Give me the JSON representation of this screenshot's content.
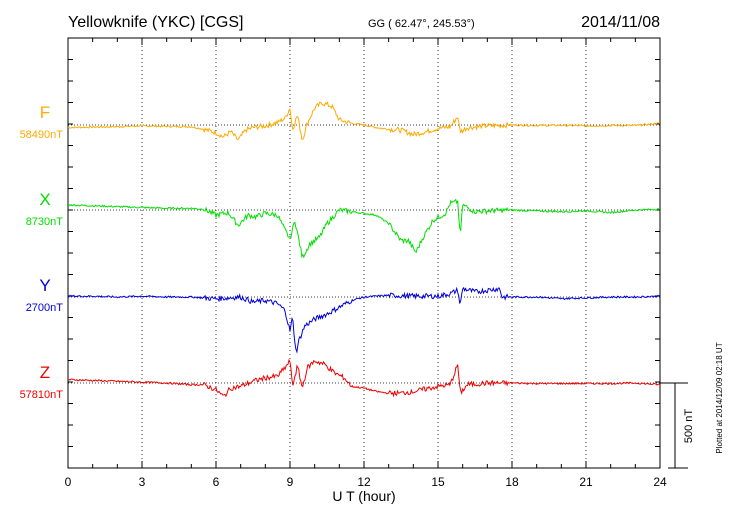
{
  "header": {
    "title": "Yellowknife (YKC)  [CGS]",
    "coords": "GG ( 62.47°, 245.53°)",
    "date": "2014/11/08"
  },
  "footer": {
    "plotted": "Plotted at 2014/12/09 02:18 UT"
  },
  "chart_data": {
    "type": "line",
    "xlabel": "U T (hour)",
    "xlim": [
      0,
      24
    ],
    "xticks": [
      0,
      3,
      6,
      9,
      12,
      15,
      18,
      21,
      24
    ],
    "scale_bar": {
      "label": "500 nT",
      "value_nT": 500
    },
    "grid": true,
    "series": [
      {
        "name": "F",
        "baseline_label": "58490nT",
        "color": "#ffaa00",
        "points": [
          [
            0,
            -15
          ],
          [
            1,
            -12
          ],
          [
            2,
            -10
          ],
          [
            3,
            -5
          ],
          [
            4,
            -8
          ],
          [
            5,
            -10
          ],
          [
            5.5,
            -25
          ],
          [
            6,
            -45
          ],
          [
            6.3,
            -70
          ],
          [
            6.6,
            -40
          ],
          [
            6.9,
            -90
          ],
          [
            7.2,
            -30
          ],
          [
            7.5,
            -15
          ],
          [
            8,
            -5
          ],
          [
            8.5,
            15
          ],
          [
            8.8,
            40
          ],
          [
            9.0,
            100
          ],
          [
            9.1,
            -30
          ],
          [
            9.3,
            60
          ],
          [
            9.5,
            -90
          ],
          [
            9.7,
            10
          ],
          [
            10.0,
            100
          ],
          [
            10.3,
            130
          ],
          [
            10.7,
            110
          ],
          [
            11.0,
            30
          ],
          [
            11.5,
            10
          ],
          [
            12,
            0
          ],
          [
            12.5,
            -15
          ],
          [
            13,
            -25
          ],
          [
            13.5,
            -30
          ],
          [
            14,
            -55
          ],
          [
            14.5,
            -40
          ],
          [
            15,
            -20
          ],
          [
            15.5,
            -10
          ],
          [
            15.8,
            50
          ],
          [
            15.9,
            -40
          ],
          [
            16.2,
            -15
          ],
          [
            17,
            -5
          ],
          [
            18,
            0
          ],
          [
            19,
            -3
          ],
          [
            20,
            -2
          ],
          [
            21,
            -5
          ],
          [
            22,
            -3
          ],
          [
            23,
            -3
          ],
          [
            24,
            10
          ]
        ]
      },
      {
        "name": "X",
        "baseline_label": "8730nT",
        "color": "#00e000",
        "points": [
          [
            0,
            30
          ],
          [
            1,
            25
          ],
          [
            2,
            20
          ],
          [
            3,
            15
          ],
          [
            4,
            10
          ],
          [
            5,
            10
          ],
          [
            5.5,
            5
          ],
          [
            6,
            -30
          ],
          [
            6.5,
            -15
          ],
          [
            6.9,
            -90
          ],
          [
            7.3,
            -30
          ],
          [
            7.6,
            -40
          ],
          [
            8,
            -20
          ],
          [
            8.5,
            -30
          ],
          [
            8.8,
            -120
          ],
          [
            9.0,
            -170
          ],
          [
            9.2,
            -60
          ],
          [
            9.5,
            -280
          ],
          [
            9.8,
            -200
          ],
          [
            10.2,
            -160
          ],
          [
            10.5,
            -80
          ],
          [
            11,
            0
          ],
          [
            11.5,
            -10
          ],
          [
            12,
            -20
          ],
          [
            12.5,
            -30
          ],
          [
            13,
            -80
          ],
          [
            13.5,
            -180
          ],
          [
            13.8,
            -180
          ],
          [
            14.1,
            -250
          ],
          [
            14.4,
            -160
          ],
          [
            14.8,
            -60
          ],
          [
            15.3,
            -20
          ],
          [
            15.5,
            40
          ],
          [
            15.8,
            50
          ],
          [
            15.9,
            -160
          ],
          [
            16,
            30
          ],
          [
            16.5,
            -10
          ],
          [
            17,
            -5
          ],
          [
            18,
            0
          ],
          [
            19,
            -5
          ],
          [
            20,
            -10
          ],
          [
            21,
            -5
          ],
          [
            22,
            -15
          ],
          [
            23,
            0
          ],
          [
            24,
            5
          ]
        ]
      },
      {
        "name": "Y",
        "baseline_label": "2700nT",
        "color": "#0000dd",
        "points": [
          [
            0,
            5
          ],
          [
            1,
            5
          ],
          [
            2,
            0
          ],
          [
            3,
            5
          ],
          [
            4,
            0
          ],
          [
            5,
            0
          ],
          [
            6,
            -10
          ],
          [
            7,
            0
          ],
          [
            7.5,
            -30
          ],
          [
            8,
            -20
          ],
          [
            8.5,
            -40
          ],
          [
            8.8,
            -80
          ],
          [
            9.0,
            -200
          ],
          [
            9.1,
            -120
          ],
          [
            9.25,
            -330
          ],
          [
            9.35,
            -260
          ],
          [
            9.6,
            -170
          ],
          [
            10,
            -130
          ],
          [
            10.5,
            -100
          ],
          [
            11,
            -60
          ],
          [
            11.5,
            -20
          ],
          [
            12,
            0
          ],
          [
            13,
            10
          ],
          [
            14,
            5
          ],
          [
            15,
            5
          ],
          [
            15.5,
            20
          ],
          [
            15.8,
            40
          ],
          [
            15.9,
            -50
          ],
          [
            16,
            50
          ],
          [
            16.5,
            30
          ],
          [
            17,
            40
          ],
          [
            17.5,
            50
          ],
          [
            17.6,
            0
          ],
          [
            18,
            0
          ],
          [
            19,
            0
          ],
          [
            20,
            -10
          ],
          [
            21,
            -5
          ],
          [
            22,
            0
          ],
          [
            23,
            0
          ],
          [
            24,
            5
          ]
        ]
      },
      {
        "name": "Z",
        "baseline_label": "57810nT",
        "color": "#ee0000",
        "points": [
          [
            0,
            20
          ],
          [
            1,
            15
          ],
          [
            2,
            10
          ],
          [
            3,
            5
          ],
          [
            4,
            0
          ],
          [
            5,
            -10
          ],
          [
            5.5,
            -10
          ],
          [
            6,
            -40
          ],
          [
            6.3,
            -80
          ],
          [
            6.6,
            -30
          ],
          [
            7,
            -20
          ],
          [
            7.5,
            10
          ],
          [
            8,
            30
          ],
          [
            8.5,
            40
          ],
          [
            8.8,
            90
          ],
          [
            9.0,
            130
          ],
          [
            9.1,
            -20
          ],
          [
            9.3,
            100
          ],
          [
            9.5,
            -30
          ],
          [
            9.7,
            90
          ],
          [
            10.0,
            130
          ],
          [
            10.4,
            110
          ],
          [
            10.8,
            60
          ],
          [
            11.2,
            30
          ],
          [
            11.5,
            -20
          ],
          [
            12,
            -30
          ],
          [
            12.5,
            -50
          ],
          [
            13,
            -60
          ],
          [
            13.5,
            -60
          ],
          [
            14,
            -50
          ],
          [
            14.5,
            -35
          ],
          [
            15,
            -20
          ],
          [
            15.5,
            -10
          ],
          [
            15.8,
            110
          ],
          [
            15.9,
            -60
          ],
          [
            16.2,
            -10
          ],
          [
            17,
            0
          ],
          [
            18,
            0
          ],
          [
            19,
            -3
          ],
          [
            20,
            -3
          ],
          [
            21,
            -3
          ],
          [
            22,
            -3
          ],
          [
            23,
            0
          ],
          [
            24,
            -10
          ]
        ]
      }
    ]
  }
}
